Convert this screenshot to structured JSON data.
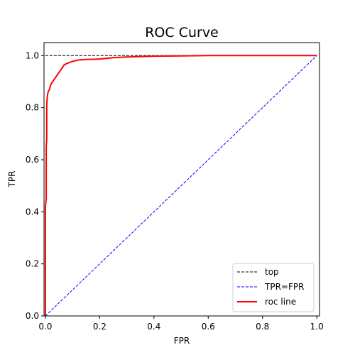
{
  "chart_data": {
    "type": "line",
    "title": "ROC Curve",
    "xlabel": "FPR",
    "ylabel": "TPR",
    "xlim": [
      -0.005,
      1.01
    ],
    "ylim": [
      0.0,
      1.05
    ],
    "xticks": [
      0.0,
      0.2,
      0.4,
      0.6,
      0.8,
      1.0
    ],
    "xtick_labels": [
      "0.0",
      "0.2",
      "0.4",
      "0.6",
      "0.8",
      "1.0"
    ],
    "yticks": [
      0.0,
      0.2,
      0.4,
      0.6,
      0.8,
      1.0
    ],
    "ytick_labels": [
      "0.0",
      "0.2",
      "0.4",
      "0.6",
      "0.8",
      "1.0"
    ],
    "grid": false,
    "legend_position": "lower-right",
    "series": [
      {
        "name": "top",
        "color": "#000000",
        "style": "dashed",
        "x": [
          0.0,
          1.0
        ],
        "y": [
          1.0,
          1.0
        ]
      },
      {
        "name": "TPR=FPR",
        "color": "#0000ff",
        "style": "dashed",
        "x": [
          0.0,
          1.0
        ],
        "y": [
          0.0,
          1.0
        ]
      },
      {
        "name": "roc line",
        "color": "#ff0000",
        "style": "solid",
        "x": [
          0.0,
          0.0,
          0.003,
          0.003,
          0.005,
          0.005,
          0.006,
          0.008,
          0.01,
          0.015,
          0.02,
          0.03,
          0.04,
          0.05,
          0.06,
          0.07,
          0.08,
          0.1,
          0.12,
          0.15,
          0.2,
          0.25,
          0.3,
          0.4,
          0.5,
          0.6,
          0.8,
          1.0
        ],
        "y": [
          0.0,
          0.42,
          0.45,
          0.65,
          0.68,
          0.8,
          0.83,
          0.85,
          0.86,
          0.87,
          0.89,
          0.905,
          0.92,
          0.935,
          0.95,
          0.965,
          0.97,
          0.978,
          0.983,
          0.985,
          0.987,
          0.992,
          0.995,
          0.998,
          0.999,
          1.0,
          1.0,
          1.0
        ]
      }
    ]
  }
}
